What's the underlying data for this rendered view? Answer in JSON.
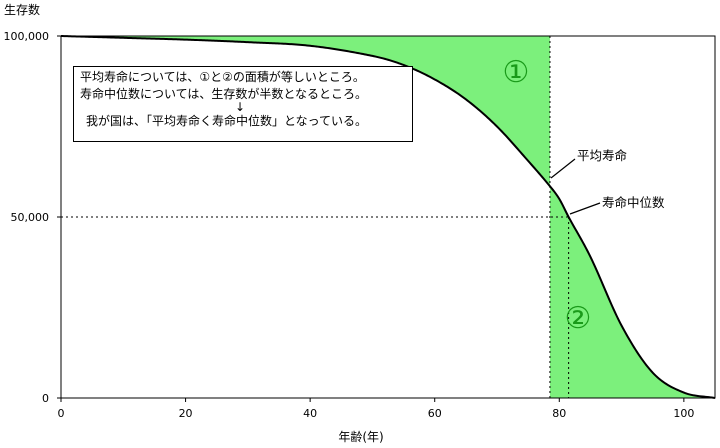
{
  "chart_data": {
    "type": "area",
    "ylabel": "生存数",
    "xlabel": "年齢(年)",
    "xlim": [
      0,
      105
    ],
    "ylim": [
      0,
      100000
    ],
    "x_ticks": [
      0,
      20,
      40,
      60,
      80,
      100
    ],
    "y_ticks": [
      {
        "value": 0,
        "label": "0"
      },
      {
        "value": 50000,
        "label": "50,000"
      },
      {
        "value": 100000,
        "label": "100,000"
      }
    ],
    "series": [
      {
        "x": [
          0,
          10,
          20,
          30,
          40,
          50,
          55,
          60,
          65,
          70,
          75,
          78.5,
          80,
          81.5,
          85,
          90,
          95,
          100,
          105
        ],
        "y": [
          100000,
          99500,
          99000,
          98300,
          97300,
          94500,
          92000,
          88000,
          82500,
          75000,
          65500,
          58500,
          55000,
          50000,
          39000,
          20000,
          7000,
          1500,
          0
        ]
      }
    ],
    "life_expectancy_age": 78.5,
    "median_age": 81.5,
    "median_survivors": 50000,
    "annotations": {
      "life_expectancy": "平均寿命",
      "median": "寿命中位数",
      "area1": "①",
      "area2": "②"
    },
    "colors": {
      "fill": "#7cf07c",
      "line": "#000000",
      "circle": "#1a9a1a"
    }
  },
  "note": {
    "line1": "平均寿命については、①と②の面積が等しいところ。",
    "line2": "寿命中位数については、生存数が半数となるところ。",
    "arrow": "↓",
    "line3": "我が国は、「平均寿命く寿命中位数」となっている。"
  }
}
